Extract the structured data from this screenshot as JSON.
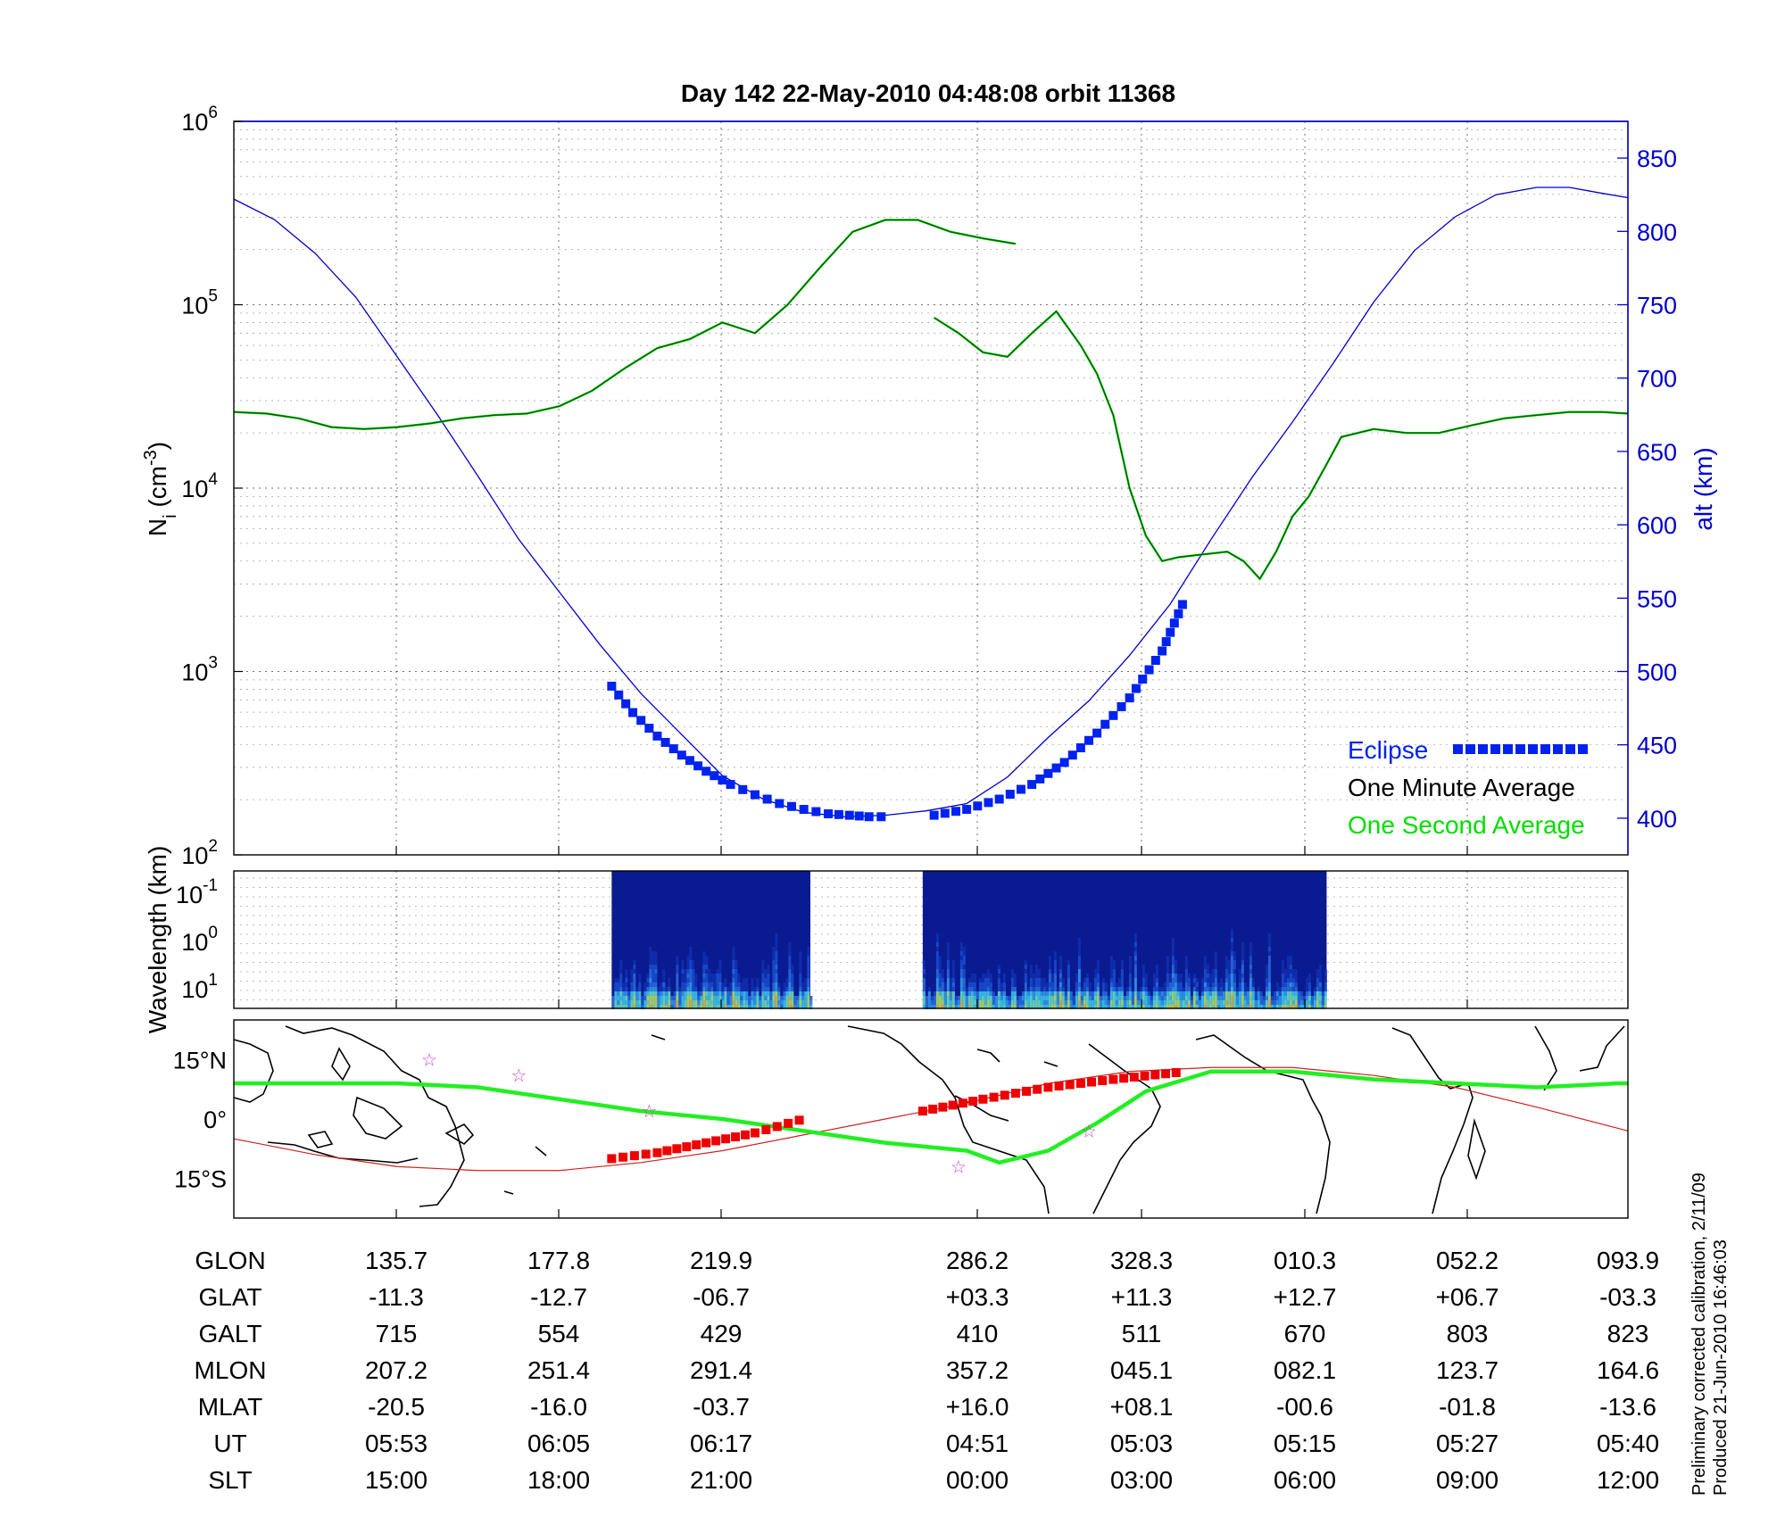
{
  "title": "Day 142  22-May-2010 04:48:08   orbit 11368",
  "note_lines": [
    "Preliminary corrected calibration, 2/11/09",
    "Produced 21-Jun-2010 16:46:03"
  ],
  "colors": {
    "alt_line": "#0000cc",
    "ni_minute": "#005500",
    "ni_second": "#00dd00",
    "eclipse": "#0022ee",
    "ground_track": "#22ee22",
    "eclipse_map": "#ee0000",
    "terminator": "#cc2222",
    "stars": "#cc44cc",
    "spectrogram_bg": "#0a1a90"
  },
  "legend": {
    "eclipse": "Eclipse",
    "minute": "One Minute Average",
    "second": "One Second Average"
  },
  "chart_data": [
    {
      "type": "line",
      "name": "density-altitude",
      "ylabel_left": "N_i (cm^-3)",
      "ylabel_right": "alt (km)",
      "yscale_left": "log",
      "ylim_left": [
        100,
        1000000
      ],
      "ylim_right": [
        375,
        875
      ],
      "yticks_right": [
        "850",
        "800",
        "750",
        "700",
        "650",
        "600",
        "550",
        "500",
        "450",
        "400"
      ],
      "x_range": [
        0,
        8.56
      ],
      "x_note": "index along the orbit table columns; gap in density data between the 219.9 and 286.2 columns",
      "series": [
        {
          "name": "alt (km)",
          "x": [
            0,
            0.25,
            0.5,
            0.75,
            1,
            1.25,
            1.5,
            1.75,
            2,
            2.25,
            2.5,
            2.75,
            3,
            3.25,
            3.5,
            3.75,
            4,
            4.25,
            4.5,
            4.75,
            5,
            5.25,
            5.5,
            5.75,
            6,
            6.25,
            6.5,
            6.75,
            7,
            7.25,
            7.5,
            7.75,
            8,
            8.2,
            8.4,
            8.56
          ],
          "y": [
            822,
            808,
            785,
            755,
            715,
            675,
            633,
            590,
            554,
            518,
            485,
            457,
            429,
            413,
            404,
            401,
            402,
            405,
            410,
            428,
            455,
            480,
            511,
            546,
            590,
            632,
            670,
            710,
            752,
            787,
            810,
            825,
            830,
            830,
            826,
            823
          ]
        },
        {
          "name": "One Minute Average",
          "segments": [
            {
              "x": [
                0,
                0.2,
                0.4,
                0.6,
                0.8,
                1.0,
                1.2,
                1.4,
                1.6,
                1.8,
                2.0,
                2.2,
                2.4,
                2.6,
                2.8,
                3.0,
                3.2,
                3.4,
                3.6,
                3.8,
                4.0,
                4.2,
                4.4,
                4.6,
                4.8,
                5.0,
                5.2,
                5.4,
                5.6,
                5.8,
                6.0,
                6.2,
                6.4,
                6.6,
                6.8
              ],
              "y": [
                26000,
                25500,
                24000,
                21500,
                21000,
                21500,
                22500,
                24000,
                25000,
                25500,
                28000,
                34000,
                45000,
                58000,
                65000,
                80000,
                70000,
                100000,
                160000,
                250000,
                290000,
                290000,
                250000,
                230000,
                215000,
                0,
                0,
                0,
                0,
                0,
                0,
                0,
                0,
                0,
                0
              ]
            },
            {
              "x": [
                4.3,
                4.45,
                4.6,
                4.75,
                4.9,
                5.05,
                5.2,
                5.3,
                5.4,
                5.5,
                5.6,
                5.7,
                5.8,
                5.9,
                6.0,
                6.1,
                6.2,
                6.3,
                6.4,
                6.5,
                6.6,
                6.7,
                6.8,
                7.0,
                7.2,
                7.4,
                7.6,
                7.8,
                8.0,
                8.2,
                8.4,
                8.56
              ],
              "y": [
                85000,
                70000,
                55000,
                52000,
                70000,
                92000,
                60000,
                42000,
                25000,
                10000,
                5500,
                4000,
                4200,
                4300,
                4400,
                4500,
                4000,
                3200,
                4500,
                7000,
                9000,
                13000,
                19000,
                21000,
                20000,
                20000,
                22000,
                24000,
                25000,
                26000,
                26000,
                25500
              ]
            }
          ]
        }
      ],
      "eclipse_alt": {
        "x": [
          2.32,
          2.45,
          2.6,
          2.75,
          2.9,
          3.05,
          3.2,
          3.35,
          3.5,
          3.65,
          3.78,
          3.9,
          4.05,
          4.3,
          4.5,
          4.7,
          4.9,
          5.1,
          5.3,
          5.5,
          5.7,
          5.85
        ],
        "y": [
          490,
          472,
          456,
          443,
          432,
          423,
          416,
          410,
          406,
          403,
          402,
          401,
          401,
          402,
          406,
          413,
          423,
          438,
          458,
          482,
          514,
          552
        ]
      }
    },
    {
      "type": "heatmap",
      "name": "spectrogram",
      "ylabel": "Wavelength (km)",
      "yticks": [
        "10-1",
        "100",
        "101"
      ],
      "blocks": [
        [
          2.32,
          3.54
        ],
        [
          4.23,
          6.71
        ]
      ]
    },
    {
      "type": "line",
      "name": "ground-track-map",
      "yticks": [
        "15°N",
        "0°",
        "15°S"
      ],
      "ylim": [
        -25,
        25
      ],
      "ground_track": {
        "x": [
          0,
          0.5,
          1.0,
          1.5,
          2.0,
          2.5,
          3.0,
          3.5,
          4.0,
          4.5,
          4.7,
          5.0,
          5.3,
          5.6,
          6.0,
          6.5,
          7.0,
          7.5,
          8.0,
          8.5,
          8.56
        ],
        "y": [
          9,
          9,
          9,
          8,
          5,
          2,
          0,
          -3,
          -6,
          -8,
          -11,
          -8,
          -1,
          7,
          12,
          12,
          10,
          9,
          8,
          9,
          9
        ]
      },
      "terminator": {
        "x": [
          0,
          0.5,
          1.0,
          1.5,
          2.0,
          2.5,
          3.0,
          3.5,
          4.0,
          4.5,
          5.0,
          5.5,
          6.0,
          6.5,
          7.0,
          7.5,
          8.0,
          8.56
        ],
        "y": [
          -5,
          -9,
          -12,
          -13,
          -13,
          -11,
          -8,
          -4,
          0,
          4,
          9,
          12,
          13,
          13,
          11,
          8,
          3,
          -3
        ]
      },
      "eclipse_track": {
        "x": [
          2.32,
          2.6,
          2.9,
          3.2,
          3.54,
          4.23,
          4.6,
          5.0,
          5.4,
          5.85
        ],
        "y": [
          -10,
          -8.5,
          -6,
          -3.5,
          0.5,
          2,
          5,
          8,
          10,
          12
        ]
      },
      "stars": {
        "x": [
          1.2,
          1.75,
          2.55,
          4.45,
          5.25
        ],
        "y": [
          15,
          11,
          2,
          -12,
          -3
        ]
      }
    },
    {
      "type": "table",
      "name": "orbit-table",
      "rows": [
        {
          "label": "GLON",
          "values": [
            "135.7",
            "177.8",
            "219.9",
            "286.2",
            "328.3",
            "010.3",
            "052.2",
            "093.9"
          ]
        },
        {
          "label": "GLAT",
          "values": [
            "-11.3",
            "-12.7",
            "-06.7",
            "+03.3",
            "+11.3",
            "+12.7",
            "+06.7",
            "-03.3"
          ]
        },
        {
          "label": "GALT",
          "values": [
            "715",
            "554",
            "429",
            "410",
            "511",
            "670",
            "803",
            "823"
          ]
        },
        {
          "label": "MLON",
          "values": [
            "207.2",
            "251.4",
            "291.4",
            "357.2",
            "045.1",
            "082.1",
            "123.7",
            "164.6"
          ]
        },
        {
          "label": "MLAT",
          "values": [
            "-20.5",
            "-16.0",
            "-03.7",
            "+16.0",
            "+08.1",
            "-00.6",
            "-01.8",
            "-13.6"
          ]
        },
        {
          "label": "UT",
          "values": [
            "05:53",
            "06:05",
            "06:17",
            "04:51",
            "05:03",
            "05:15",
            "05:27",
            "05:40"
          ]
        },
        {
          "label": "SLT",
          "values": [
            "15:00",
            "18:00",
            "21:00",
            "00:00",
            "03:00",
            "06:00",
            "09:00",
            "12:00"
          ]
        }
      ]
    }
  ]
}
